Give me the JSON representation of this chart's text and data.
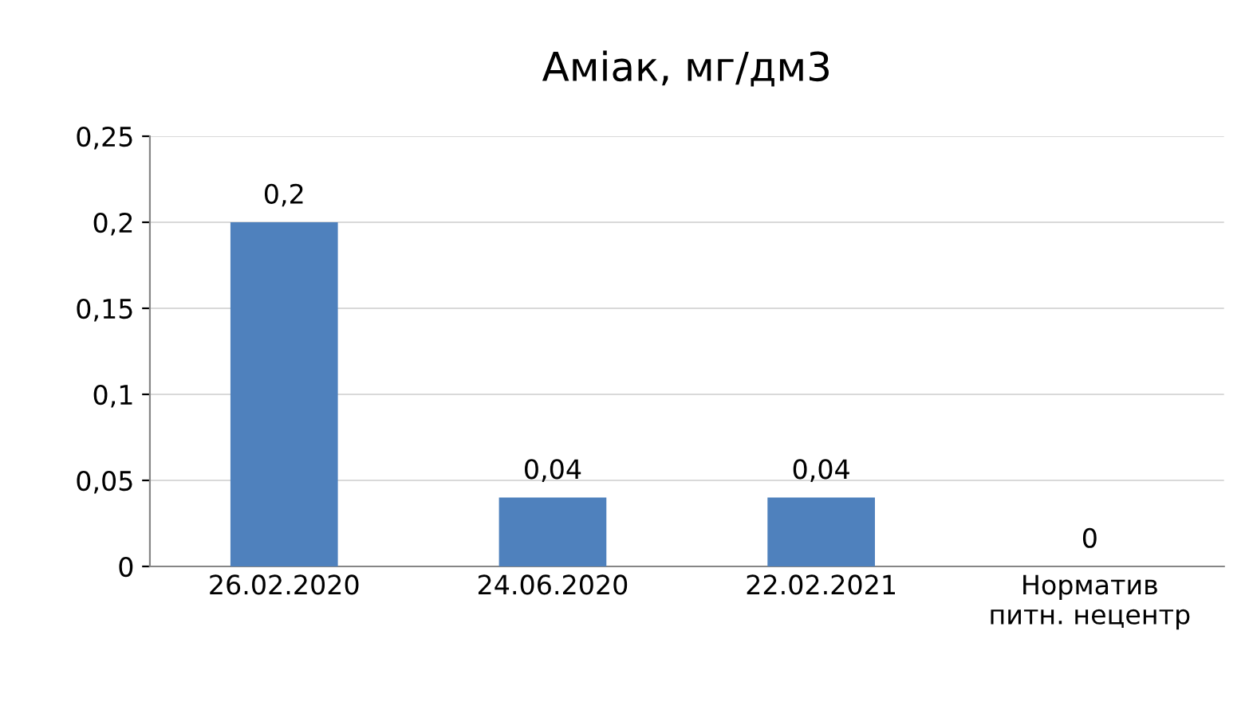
{
  "chart_data": {
    "type": "bar",
    "title": "Аміак, мг/дм3",
    "categories": [
      "26.02.2020",
      "24.06.2020",
      "22.02.2021",
      "Норматив\nпитн. нецентр"
    ],
    "values": [
      0.2,
      0.04,
      0.04,
      0
    ],
    "value_labels": [
      "0,2",
      "0,04",
      "0,04",
      "0"
    ],
    "color": "#4f81bd",
    "ylim": [
      0,
      0.25
    ],
    "yticks": [
      {
        "value": 0,
        "label": "0"
      },
      {
        "value": 0.05,
        "label": "0,05"
      },
      {
        "value": 0.1,
        "label": "0,1"
      },
      {
        "value": 0.15,
        "label": "0,15"
      },
      {
        "value": 0.2,
        "label": "0,2"
      },
      {
        "value": 0.25,
        "label": "0,25"
      }
    ],
    "grid": "y",
    "legend": false
  }
}
